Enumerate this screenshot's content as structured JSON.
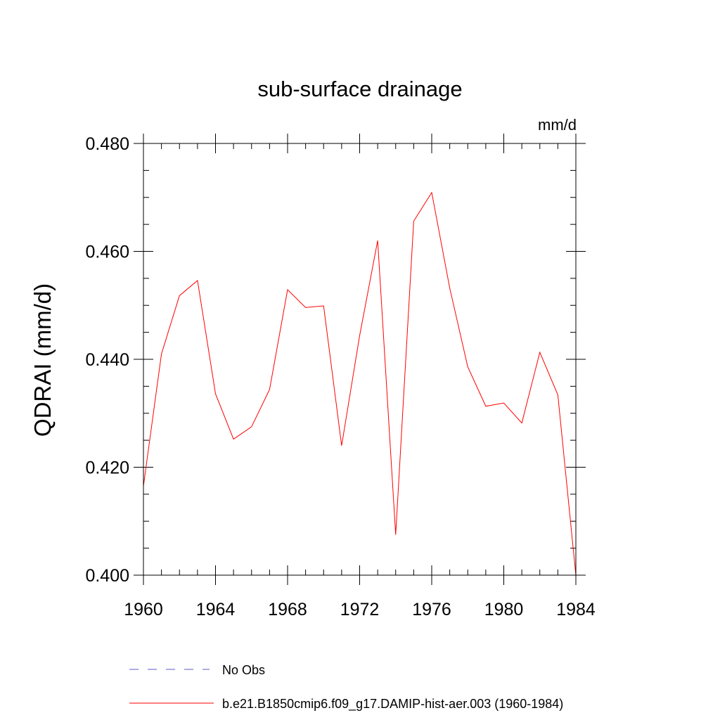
{
  "chart_data": {
    "type": "line",
    "title": "sub-surface drainage",
    "units": "mm/d",
    "ylabel": "QDRAI  (mm/d)",
    "xlabel": "",
    "xlim": [
      1960,
      1984
    ],
    "ylim": [
      0.4,
      0.48
    ],
    "x_ticks": [
      1960,
      1964,
      1968,
      1972,
      1976,
      1980,
      1984
    ],
    "x_tick_labels": [
      "1960",
      "1964",
      "1968",
      "1972",
      "1976",
      "1980",
      "1984"
    ],
    "y_ticks": [
      0.4,
      0.42,
      0.44,
      0.46,
      0.48
    ],
    "y_tick_labels": [
      "0.400",
      "0.420",
      "0.440",
      "0.460",
      "0.480"
    ],
    "y_minor_step": 0.005,
    "x_minor_step": 1,
    "grid": false,
    "legend_position": "bottom",
    "series": [
      {
        "name": "b.e21.B1850cmip6.f09_g17.DAMIP-hist-aer.003 (1960-1984)",
        "color": "#ff0000",
        "style": "solid",
        "x": [
          1960,
          1961,
          1962,
          1963,
          1964,
          1965,
          1966,
          1967,
          1968,
          1969,
          1970,
          1971,
          1972,
          1973,
          1974,
          1975,
          1976,
          1977,
          1978,
          1979,
          1980,
          1981,
          1982,
          1983,
          1984
        ],
        "values": [
          0.4165,
          0.441,
          0.4518,
          0.4546,
          0.4336,
          0.4252,
          0.4275,
          0.4344,
          0.4529,
          0.4496,
          0.4499,
          0.424,
          0.4444,
          0.462,
          0.4075,
          0.4656,
          0.4709,
          0.4532,
          0.4386,
          0.4313,
          0.4319,
          0.4282,
          0.4413,
          0.4334,
          0.4
        ]
      }
    ],
    "legend": [
      {
        "label": "No Obs",
        "color": "#5b5bc8",
        "style": "dashed"
      },
      {
        "label": "b.e21.B1850cmip6.f09_g17.DAMIP-hist-aer.003 (1960-1984)",
        "color": "#ff0000",
        "style": "solid"
      }
    ]
  }
}
